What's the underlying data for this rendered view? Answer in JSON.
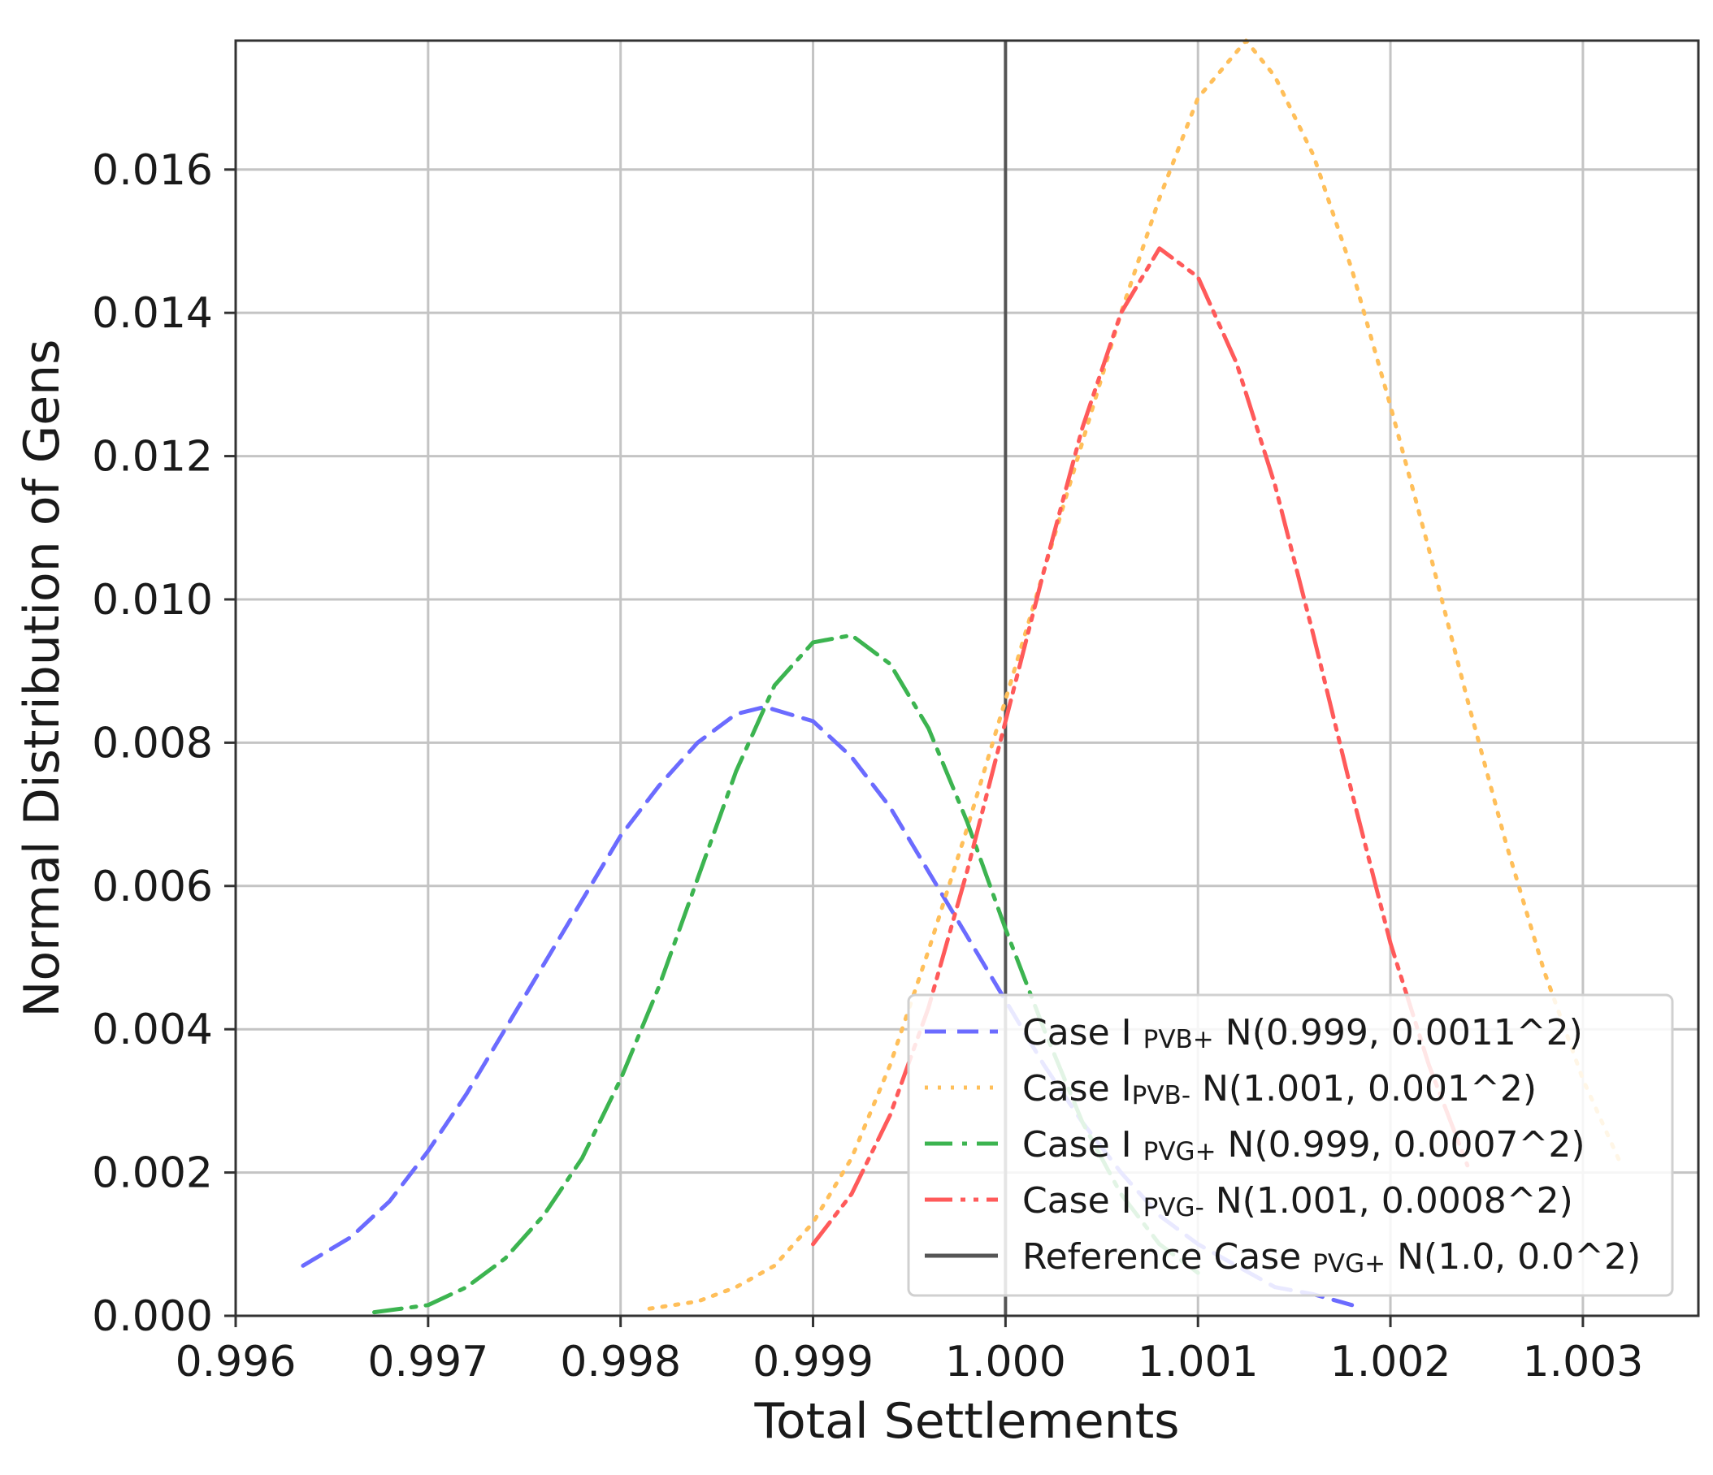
{
  "chart_data": {
    "type": "line",
    "title": "",
    "xlabel": "Total Settlements",
    "ylabel": "Normal Distribution of Gens",
    "xlim": [
      0.996,
      1.0036
    ],
    "ylim": [
      0.0,
      0.0178
    ],
    "xticks": [
      0.996,
      0.997,
      0.998,
      0.999,
      1.0,
      1.001,
      1.002,
      1.003
    ],
    "xtick_labels": [
      "0.996",
      "0.997",
      "0.998",
      "0.999",
      "1.000",
      "1.001",
      "1.002",
      "1.003"
    ],
    "yticks": [
      0.0,
      0.002,
      0.004,
      0.006,
      0.008,
      0.01,
      0.012,
      0.014,
      0.016
    ],
    "ytick_labels": [
      "0.000",
      "0.002",
      "0.004",
      "0.006",
      "0.008",
      "0.010",
      "0.012",
      "0.014",
      "0.016"
    ],
    "grid": true,
    "legend_position": "bottom-right",
    "series": [
      {
        "legend_prefix": "Case I ",
        "legend_subscript": "PVB+",
        "legend_suffix": " N(0.999, 0.0011^2)",
        "color": "#6b6bff",
        "style": "dashed",
        "x": [
          0.99635,
          0.9966,
          0.9968,
          0.997,
          0.9972,
          0.9974,
          0.9976,
          0.9978,
          0.998,
          0.9982,
          0.9984,
          0.9986,
          0.99875,
          0.999,
          0.9992,
          0.9994,
          0.9996,
          0.9998,
          1.0,
          1.0002,
          1.0004,
          1.0006,
          1.0008,
          1.001,
          1.0012,
          1.0014,
          1.0016,
          1.0018
        ],
        "y": [
          0.0007,
          0.0011,
          0.0016,
          0.0023,
          0.0031,
          0.004,
          0.0049,
          0.0058,
          0.0067,
          0.0074,
          0.008,
          0.0084,
          0.0085,
          0.0083,
          0.0078,
          0.0071,
          0.0062,
          0.0053,
          0.0044,
          0.0035,
          0.0027,
          0.002,
          0.0014,
          0.001,
          0.0007,
          0.0004,
          0.0003,
          0.00015
        ]
      },
      {
        "legend_prefix": "Case I",
        "legend_subscript": "PVB-",
        "legend_suffix": " N(1.001, 0.001^2)",
        "color": "#ffbf5a",
        "style": "dotted",
        "x": [
          0.99815,
          0.9984,
          0.9986,
          0.9988,
          0.999,
          0.9992,
          0.9994,
          0.9996,
          0.9998,
          1.0,
          1.0002,
          1.0004,
          1.0006,
          1.0008,
          1.001,
          1.00125,
          1.0014,
          1.0016,
          1.0018,
          1.002,
          1.0022,
          1.0024,
          1.0026,
          1.0028,
          1.003,
          1.0032
        ],
        "y": [
          0.0001,
          0.0002,
          0.0004,
          0.0007,
          0.0013,
          0.0022,
          0.0035,
          0.0051,
          0.0068,
          0.0086,
          0.0104,
          0.0122,
          0.014,
          0.0156,
          0.017,
          0.0178,
          0.0173,
          0.0162,
          0.0146,
          0.0127,
          0.0107,
          0.0086,
          0.0066,
          0.0048,
          0.0033,
          0.0021
        ]
      },
      {
        "legend_prefix": "Case I ",
        "legend_subscript": "PVG+",
        "legend_suffix": " N(0.999, 0.0007^2)",
        "color": "#3cb450",
        "style": "dashdot",
        "x": [
          0.99672,
          0.997,
          0.9972,
          0.9974,
          0.9976,
          0.9978,
          0.998,
          0.9982,
          0.9984,
          0.9986,
          0.9988,
          0.999,
          0.9992,
          0.9994,
          0.9996,
          0.9998,
          1.0,
          1.0002,
          1.0004,
          1.0006,
          1.0008,
          1.001
        ],
        "y": [
          5e-05,
          0.00015,
          0.0004,
          0.0008,
          0.0014,
          0.0022,
          0.0033,
          0.0046,
          0.0061,
          0.0076,
          0.0088,
          0.0094,
          0.0095,
          0.0091,
          0.0082,
          0.0069,
          0.0054,
          0.004,
          0.0027,
          0.0017,
          0.001,
          0.0006
        ]
      },
      {
        "legend_prefix": "Case I ",
        "legend_subscript": "PVG-",
        "legend_suffix": " N(1.001, 0.0008^2)",
        "color": "#ff5a5a",
        "style": "dashdotdot",
        "x": [
          0.999,
          0.9992,
          0.9994,
          0.9996,
          0.9998,
          1.0,
          1.0002,
          1.0004,
          1.0006,
          1.0008,
          1.001,
          1.0012,
          1.0014,
          1.0016,
          1.0018,
          1.002,
          1.0022,
          1.0024
        ],
        "y": [
          0.001,
          0.0017,
          0.0028,
          0.0043,
          0.0062,
          0.0083,
          0.0104,
          0.0124,
          0.014,
          0.0149,
          0.0145,
          0.0133,
          0.0116,
          0.0095,
          0.0073,
          0.0052,
          0.0035,
          0.0021
        ]
      }
    ],
    "reference_line": {
      "legend_prefix": "Reference Case ",
      "legend_subscript": "PVG+",
      "legend_suffix": " N(1.0, 0.0^2)",
      "color": "#555555",
      "style": "solid",
      "x": 1.0
    }
  }
}
